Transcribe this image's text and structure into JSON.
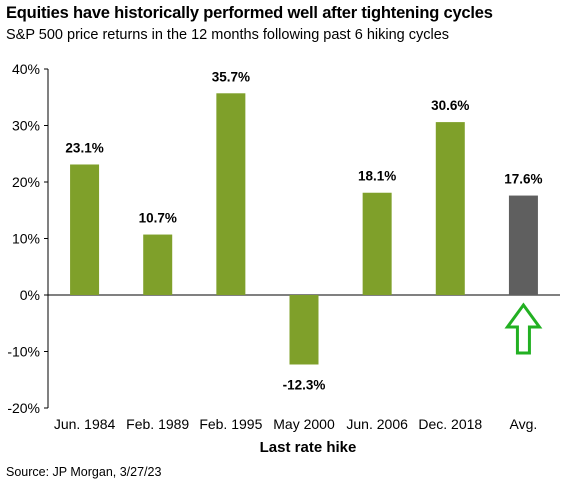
{
  "header": {
    "title": "Equities have historically performed well after tightening cycles",
    "subtitle": "S&P 500 price returns in the 12 months following past 6 hiking cycles"
  },
  "footer": {
    "source": "Source: JP Morgan, 3/27/23"
  },
  "colors": {
    "bar": "#7FA02A",
    "avg_bar": "#5F5F5F",
    "arrow": "#22B022",
    "axis": "#000000"
  },
  "chart_data": {
    "type": "bar",
    "title": "Equities have historically performed well after tightening cycles",
    "subtitle": "S&P 500 price returns in the 12 months following past 6 hiking cycles",
    "xlabel": "Last rate hike",
    "ylabel": "",
    "categories": [
      "Jun. 1984",
      "Feb. 1989",
      "Feb. 1995",
      "May 2000",
      "Jun. 2006",
      "Dec. 2018",
      "Avg."
    ],
    "values": [
      23.1,
      10.7,
      35.7,
      -12.3,
      18.1,
      30.6,
      17.6
    ],
    "data_labels": [
      "23.1%",
      "10.7%",
      "35.7%",
      "-12.3%",
      "18.1%",
      "30.6%",
      "17.6%"
    ],
    "ylim": [
      -20,
      40
    ],
    "yticks": [
      -20,
      -10,
      0,
      10,
      20,
      30,
      40
    ],
    "ytick_labels": [
      "-20%",
      "-10%",
      "0%",
      "10%",
      "20%",
      "30%",
      "40%"
    ],
    "highlight": {
      "category": "Avg.",
      "icon": "up-arrow-icon"
    },
    "grid": false,
    "legend": "none"
  }
}
